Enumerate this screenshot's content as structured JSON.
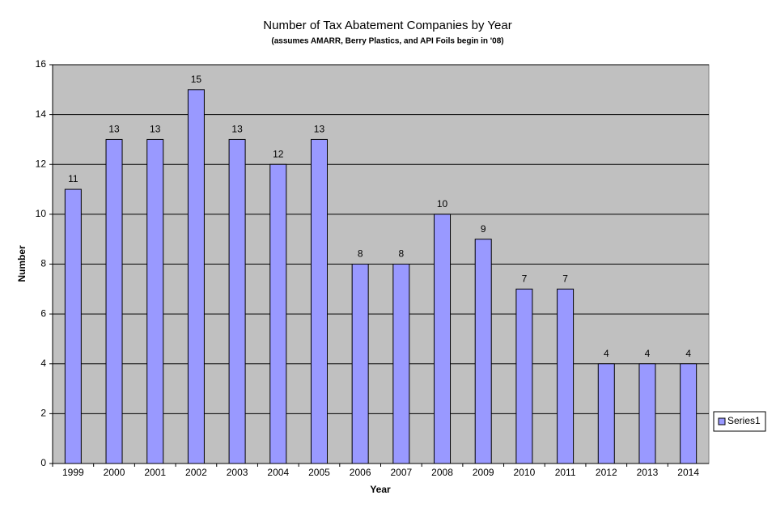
{
  "chart_data": {
    "type": "bar",
    "title": "Number of Tax Abatement Companies by Year",
    "subtitle": "(assumes AMARR, Berry Plastics, and API Foils begin in '08)",
    "x_label": "Year",
    "y_label": "Number",
    "categories": [
      "1999",
      "2000",
      "2001",
      "2002",
      "2003",
      "2004",
      "2005",
      "2006",
      "2007",
      "2008",
      "2009",
      "2010",
      "2011",
      "2012",
      "2013",
      "2014"
    ],
    "series": [
      {
        "name": "Series1",
        "color": "#9999ff",
        "values": [
          11,
          13,
          13,
          15,
          13,
          12,
          13,
          8,
          8,
          10,
          9,
          7,
          7,
          4,
          4,
          4
        ]
      }
    ],
    "ylim": [
      0,
      16
    ],
    "yticks": [
      0,
      2,
      4,
      6,
      8,
      10,
      12,
      14,
      16
    ],
    "grid": true,
    "legend": "right"
  }
}
